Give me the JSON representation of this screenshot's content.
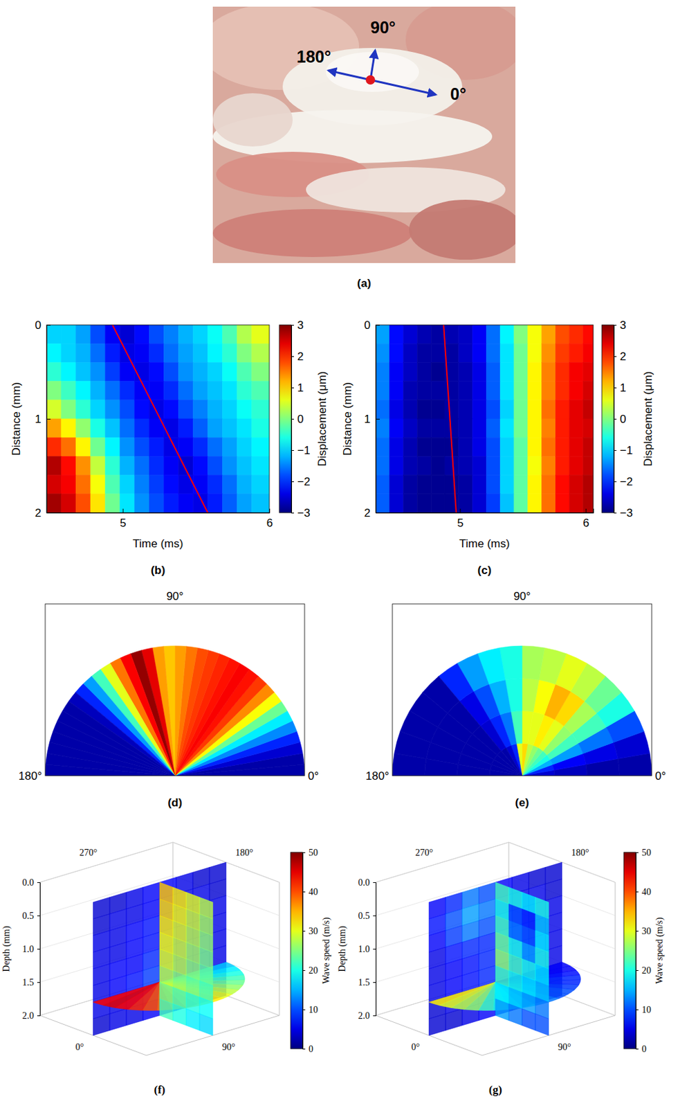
{
  "chart_data": [
    {
      "type": "image",
      "label": "(a)",
      "annotations": [
        "90°",
        "180°",
        "0°"
      ]
    },
    {
      "type": "heatmap",
      "label": "(b)",
      "x_label": "Time (ms)",
      "y_label": "Distance (mm)",
      "xlim": [
        4.48,
        6
      ],
      "xticks": [
        5,
        6
      ],
      "ylim": [
        0,
        2
      ],
      "yticks": [
        0,
        1,
        2
      ],
      "x_edges": [
        4.48,
        4.58,
        4.68,
        4.78,
        4.88,
        4.98,
        5.08,
        5.18,
        5.28,
        5.38,
        5.48,
        5.58,
        5.68,
        5.78,
        5.88,
        6
      ],
      "y_edges": [
        0,
        0.2,
        0.4,
        0.6,
        0.8,
        1,
        1.2,
        1.4,
        1.6,
        1.8,
        2
      ],
      "cells": [
        [
          -1,
          -1,
          -1.3,
          -1.8,
          -2.3,
          -2.5,
          -2.2,
          -1.8,
          -1.5,
          -1.2,
          -1,
          -0.7,
          -0.3,
          0.3,
          0.6
        ],
        [
          -0.8,
          -1,
          -1.2,
          -1.6,
          -2.1,
          -2.4,
          -2.3,
          -2,
          -1.6,
          -1.3,
          -1.1,
          -0.8,
          -0.5,
          0,
          0.3
        ],
        [
          -0.5,
          -0.8,
          -1.1,
          -1.4,
          -1.9,
          -2.3,
          -2.4,
          -2.2,
          -1.8,
          -1.4,
          -1.2,
          -1,
          -0.7,
          -0.3,
          0
        ],
        [
          0,
          -0.4,
          -0.8,
          -1.2,
          -1.6,
          -2,
          -2.3,
          -2.3,
          -2,
          -1.6,
          -1.3,
          -1.1,
          -0.9,
          -0.5,
          -0.3
        ],
        [
          0.5,
          0,
          -0.5,
          -1,
          -1.4,
          -1.8,
          -2.2,
          -2.4,
          -2.2,
          -1.8,
          -1.5,
          -1.2,
          -1,
          -0.7,
          -0.5
        ],
        [
          1.3,
          0.8,
          0.1,
          -0.6,
          -1.1,
          -1.6,
          -2,
          -2.3,
          -2.4,
          -2.1,
          -1.7,
          -1.3,
          -1.1,
          -0.9,
          -0.6
        ],
        [
          2,
          1.6,
          0.8,
          -0.1,
          -0.8,
          -1.4,
          -1.8,
          -2.1,
          -2.4,
          -2.3,
          -2,
          -1.6,
          -1.3,
          -1,
          -0.8
        ],
        [
          2.7,
          2.2,
          1.4,
          0.4,
          -0.5,
          -1.2,
          -1.6,
          -2,
          -2.3,
          -2.5,
          -2.2,
          -1.8,
          -1.4,
          -1.1,
          -0.9
        ],
        [
          2.5,
          2.3,
          1.6,
          0.7,
          -0.3,
          -1,
          -1.5,
          -1.9,
          -2.2,
          -2.4,
          -2.3,
          -2,
          -1.6,
          -1.2,
          -1
        ],
        [
          2.8,
          2.5,
          1.8,
          0.9,
          -0.1,
          -0.9,
          -1.4,
          -1.8,
          -2.1,
          -2.3,
          -2.4,
          -2.1,
          -1.7,
          -1.3,
          -1.1
        ]
      ],
      "color_range": [
        -3,
        3
      ],
      "colorbar_ticks": [
        {
          "value": -3,
          "label": "−3"
        },
        {
          "value": -2,
          "label": "−2"
        },
        {
          "value": -1,
          "label": "−1"
        },
        0,
        1,
        2,
        3
      ],
      "colorbar_label": "Displacement (μm)",
      "line": {
        "x": [
          4.93,
          5.58
        ],
        "y": [
          0,
          2
        ],
        "color": "#ff0000"
      }
    },
    {
      "type": "heatmap",
      "label": "(c)",
      "x_label": "Time (ms)",
      "y_label": "Distance (mm)",
      "xlim": [
        4.33,
        6.06
      ],
      "xticks": [
        5,
        6
      ],
      "ylim": [
        0,
        2
      ],
      "yticks": [
        0,
        1,
        2
      ],
      "x_edges": [
        4.33,
        4.44,
        4.55,
        4.66,
        4.77,
        4.88,
        4.99,
        5.1,
        5.21,
        5.32,
        5.43,
        5.54,
        5.65,
        5.76,
        5.87,
        5.98,
        6.06
      ],
      "y_edges": [
        0,
        0.2,
        0.4,
        0.6,
        0.8,
        1,
        1.2,
        1.4,
        1.6,
        1.8,
        2
      ],
      "cells": [
        [
          -1.3,
          -2.2,
          -2.5,
          -2.7,
          -2.8,
          -2.7,
          -2.6,
          -2.3,
          -1.6,
          -0.8,
          0,
          0.7,
          1.3,
          1.8,
          2.0,
          2.2
        ],
        [
          -1.4,
          -2.2,
          -2.6,
          -2.8,
          -2.8,
          -2.8,
          -2.6,
          -2.3,
          -1.6,
          -0.9,
          -0.1,
          0.7,
          1.4,
          1.9,
          2.1,
          2.3
        ],
        [
          -1.5,
          -2.3,
          -2.6,
          -2.8,
          -2.9,
          -2.8,
          -2.7,
          -2.4,
          -1.7,
          -0.9,
          -0.1,
          0.8,
          1.5,
          2.0,
          2.3,
          2.4
        ],
        [
          -1.5,
          -2.3,
          -2.7,
          -2.8,
          -2.8,
          -2.8,
          -2.7,
          -2.4,
          -1.7,
          -0.9,
          -0.1,
          0.8,
          1.5,
          2.0,
          2.3,
          2.5
        ],
        [
          -1.6,
          -2.4,
          -2.7,
          -2.9,
          -2.9,
          -2.8,
          -2.7,
          -2.4,
          -1.8,
          -1.0,
          -0.1,
          0.8,
          1.6,
          2.1,
          2.4,
          2.6
        ],
        [
          -1.5,
          -2.3,
          -2.6,
          -2.8,
          -2.8,
          -2.8,
          -2.7,
          -2.4,
          -1.7,
          -0.9,
          -0.1,
          0.8,
          1.5,
          2.1,
          2.4,
          2.5
        ],
        [
          -1.6,
          -2.4,
          -2.7,
          -2.9,
          -2.9,
          -2.9,
          -2.7,
          -2.4,
          -1.8,
          -1.0,
          -0.2,
          0.8,
          1.6,
          2.1,
          2.4,
          2.6
        ],
        [
          -1.6,
          -2.4,
          -2.7,
          -2.8,
          -2.9,
          -2.8,
          -2.7,
          -2.5,
          -1.8,
          -1.0,
          -0.2,
          0.7,
          1.5,
          2.1,
          2.4,
          2.6
        ],
        [
          -1.7,
          -2.5,
          -2.8,
          -2.9,
          -2.9,
          -2.9,
          -2.8,
          -2.5,
          -1.8,
          -1.0,
          -0.2,
          0.8,
          1.6,
          2.2,
          2.5,
          2.7
        ],
        [
          -1.7,
          -2.5,
          -2.8,
          -2.9,
          -2.9,
          -2.9,
          -2.8,
          -2.5,
          -1.9,
          -1.1,
          -0.2,
          0.8,
          1.6,
          2.2,
          2.5,
          2.7
        ]
      ],
      "color_range": [
        -3,
        3
      ],
      "colorbar_ticks": [
        {
          "value": -3,
          "label": "−3"
        },
        {
          "value": -2,
          "label": "−2"
        },
        {
          "value": -1,
          "label": "−1"
        },
        0,
        1,
        2,
        3
      ],
      "colorbar_label": "Displacement (μm)",
      "line": {
        "x": [
          4.87,
          4.97
        ],
        "y": [
          0,
          2
        ],
        "color": "#ff0000"
      }
    },
    {
      "type": "polar",
      "label": "(d)",
      "thetaticks": [
        {
          "value": 90,
          "label": "90°"
        },
        {
          "value": 180,
          "label": "180°"
        },
        {
          "value": 0,
          "label": "0°"
        }
      ],
      "theta_edges": [
        0,
        5,
        10,
        15,
        20,
        25,
        30,
        35,
        40,
        45,
        50,
        55,
        60,
        65,
        70,
        75,
        80,
        85,
        90,
        95,
        100,
        105,
        110,
        115,
        120,
        125,
        130,
        135,
        140,
        145,
        150,
        155,
        160,
        165,
        170,
        175,
        180
      ],
      "r_edges": [
        0,
        1
      ],
      "cells": [
        [
          2,
          2,
          4,
          8,
          13,
          18,
          24,
          31,
          37,
          41,
          43,
          44,
          43,
          42,
          41,
          40,
          38,
          36,
          34,
          36,
          45,
          49,
          44,
          38,
          30,
          22,
          14,
          8,
          3,
          2,
          2,
          2,
          2,
          2,
          2,
          2
        ]
      ],
      "color_range": [
        0,
        50
      ]
    },
    {
      "type": "polar",
      "label": "(e)",
      "thetaticks": [
        {
          "value": 90,
          "label": "90°"
        },
        {
          "value": 180,
          "label": "180°"
        },
        {
          "value": 0,
          "label": "0°"
        }
      ],
      "theta_edges": [
        0,
        10,
        20,
        30,
        40,
        50,
        60,
        70,
        80,
        90,
        100,
        110,
        120,
        130,
        140,
        150,
        160,
        170,
        180
      ],
      "r_edges": [
        0,
        0.25,
        0.5,
        0.75,
        1
      ],
      "cells": [
        [
          4,
          8,
          15,
          20,
          22,
          24,
          26,
          28,
          33,
          30,
          8,
          4,
          2,
          2,
          2,
          2,
          2,
          2
        ],
        [
          3,
          6,
          14,
          22,
          26,
          30,
          32,
          30,
          30,
          22,
          12,
          8,
          4,
          2,
          2,
          2,
          2,
          2
        ],
        [
          2,
          5,
          12,
          22,
          27,
          33,
          35,
          31,
          28,
          20,
          15,
          10,
          5,
          2,
          2,
          2,
          2,
          2
        ],
        [
          2,
          4,
          10,
          20,
          24,
          28,
          30,
          28,
          27,
          20,
          18,
          14,
          8,
          2,
          2,
          2,
          2,
          2
        ]
      ],
      "color_range": [
        0,
        50
      ]
    },
    {
      "type": "heatmap3d",
      "label": "(f)",
      "z_label": "Depth (mm)",
      "zlim": [
        0,
        2
      ],
      "zticks": [
        {
          "value": 0,
          "label": "0.0"
        },
        0.5,
        {
          "value": 1,
          "label": "1.0"
        },
        1.5,
        {
          "value": 2,
          "label": "2.0"
        }
      ],
      "angle_ticks": [
        {
          "value": 270,
          "label": "270°"
        },
        {
          "value": 180,
          "label": "180°"
        },
        {
          "value": 0,
          "label": "0°"
        },
        {
          "value": 90,
          "label": "90°"
        }
      ],
      "colorbar_label": "Wave speed (m/s)",
      "color_range": [
        0,
        50
      ],
      "colorbar_ticks": [
        0,
        10,
        20,
        30,
        40,
        50
      ],
      "plane_0_180": {
        "depth_edges": [
          0,
          0.25,
          0.5,
          0.75,
          1,
          1.25,
          1.5,
          1.75,
          2
        ],
        "cells": [
          [
            4,
            4,
            5,
            6,
            6,
            5,
            4,
            4
          ],
          [
            4,
            5,
            5,
            6,
            7,
            5,
            5,
            4
          ],
          [
            5,
            5,
            6,
            7,
            7,
            6,
            5,
            5
          ],
          [
            5,
            5,
            6,
            7,
            8,
            6,
            5,
            5
          ],
          [
            5,
            6,
            6,
            8,
            8,
            7,
            6,
            5
          ],
          [
            5,
            6,
            7,
            9,
            9,
            7,
            6,
            5
          ],
          [
            5,
            5,
            6,
            8,
            8,
            6,
            5,
            5
          ],
          [
            4,
            5,
            5,
            6,
            6,
            5,
            5,
            4
          ]
        ]
      },
      "plane_90": {
        "depth_edges": [
          0,
          0.25,
          0.5,
          0.75,
          1,
          1.25,
          1.5,
          1.75,
          2
        ],
        "cells": [
          [
            34,
            32,
            30,
            28
          ],
          [
            33,
            31,
            29,
            27
          ],
          [
            32,
            30,
            28,
            26
          ],
          [
            31,
            29,
            27,
            25
          ],
          [
            30,
            28,
            26,
            24
          ],
          [
            28,
            26,
            24,
            22
          ],
          [
            24,
            22,
            20,
            19
          ],
          [
            22,
            20,
            18,
            17
          ]
        ]
      },
      "fan": {
        "depth": 1.5,
        "theta_edges": [
          0,
          10,
          20,
          30,
          40,
          50,
          60,
          70,
          80,
          90,
          100,
          110,
          120,
          130,
          140,
          150,
          160,
          170,
          180
        ],
        "values": [
          44,
          45,
          44,
          42,
          40,
          38,
          36,
          34,
          33,
          32,
          30,
          28,
          26,
          24,
          22,
          20,
          18,
          16
        ]
      }
    },
    {
      "type": "heatmap3d",
      "label": "(g)",
      "z_label": "Depth (mm)",
      "zlim": [
        0,
        2
      ],
      "zticks": [
        {
          "value": 0,
          "label": "0.0"
        },
        0.5,
        {
          "value": 1,
          "label": "1.0"
        },
        1.5,
        {
          "value": 2,
          "label": "2.0"
        }
      ],
      "angle_ticks": [
        {
          "value": 270,
          "label": "270°"
        },
        {
          "value": 180,
          "label": "180°"
        },
        {
          "value": 0,
          "label": "0°"
        },
        {
          "value": 90,
          "label": "90°"
        }
      ],
      "colorbar_label": "Wave speed (m/s)",
      "color_range": [
        0,
        50
      ],
      "colorbar_ticks": [
        0,
        10,
        20,
        30,
        40,
        50
      ],
      "plane_0_180": {
        "depth_edges": [
          0,
          0.25,
          0.5,
          0.75,
          1,
          1.25,
          1.5,
          1.75,
          2
        ],
        "cells": [
          [
            6,
            8,
            12,
            10,
            6,
            5,
            4,
            4
          ],
          [
            7,
            10,
            14,
            12,
            7,
            5,
            5,
            4
          ],
          [
            6,
            9,
            12,
            10,
            8,
            6,
            5,
            5
          ],
          [
            5,
            7,
            8,
            8,
            9,
            7,
            5,
            5
          ],
          [
            5,
            6,
            7,
            8,
            9,
            7,
            6,
            5
          ],
          [
            5,
            6,
            7,
            8,
            8,
            7,
            6,
            5
          ],
          [
            4,
            5,
            6,
            7,
            7,
            6,
            5,
            4
          ],
          [
            4,
            4,
            5,
            6,
            6,
            5,
            4,
            4
          ]
        ]
      },
      "plane_90": {
        "depth_edges": [
          0,
          0.25,
          0.5,
          0.75,
          1,
          1.25,
          1.5,
          1.75,
          2
        ],
        "cells": [
          [
            22,
            20,
            18,
            20
          ],
          [
            20,
            10,
            8,
            16
          ],
          [
            22,
            12,
            10,
            18
          ],
          [
            24,
            20,
            14,
            20
          ],
          [
            26,
            22,
            20,
            18
          ],
          [
            22,
            20,
            18,
            16
          ],
          [
            18,
            16,
            14,
            12
          ],
          [
            14,
            12,
            10,
            10
          ]
        ]
      },
      "fan": {
        "depth": 1.5,
        "theta_edges": [
          0,
          10,
          20,
          30,
          40,
          50,
          60,
          70,
          80,
          90,
          100,
          110,
          120,
          130,
          140,
          150,
          160,
          170,
          180
        ],
        "values": [
          32,
          30,
          28,
          26,
          22,
          20,
          18,
          16,
          14,
          12,
          10,
          10,
          9,
          8,
          8,
          7,
          6,
          6
        ]
      }
    }
  ]
}
